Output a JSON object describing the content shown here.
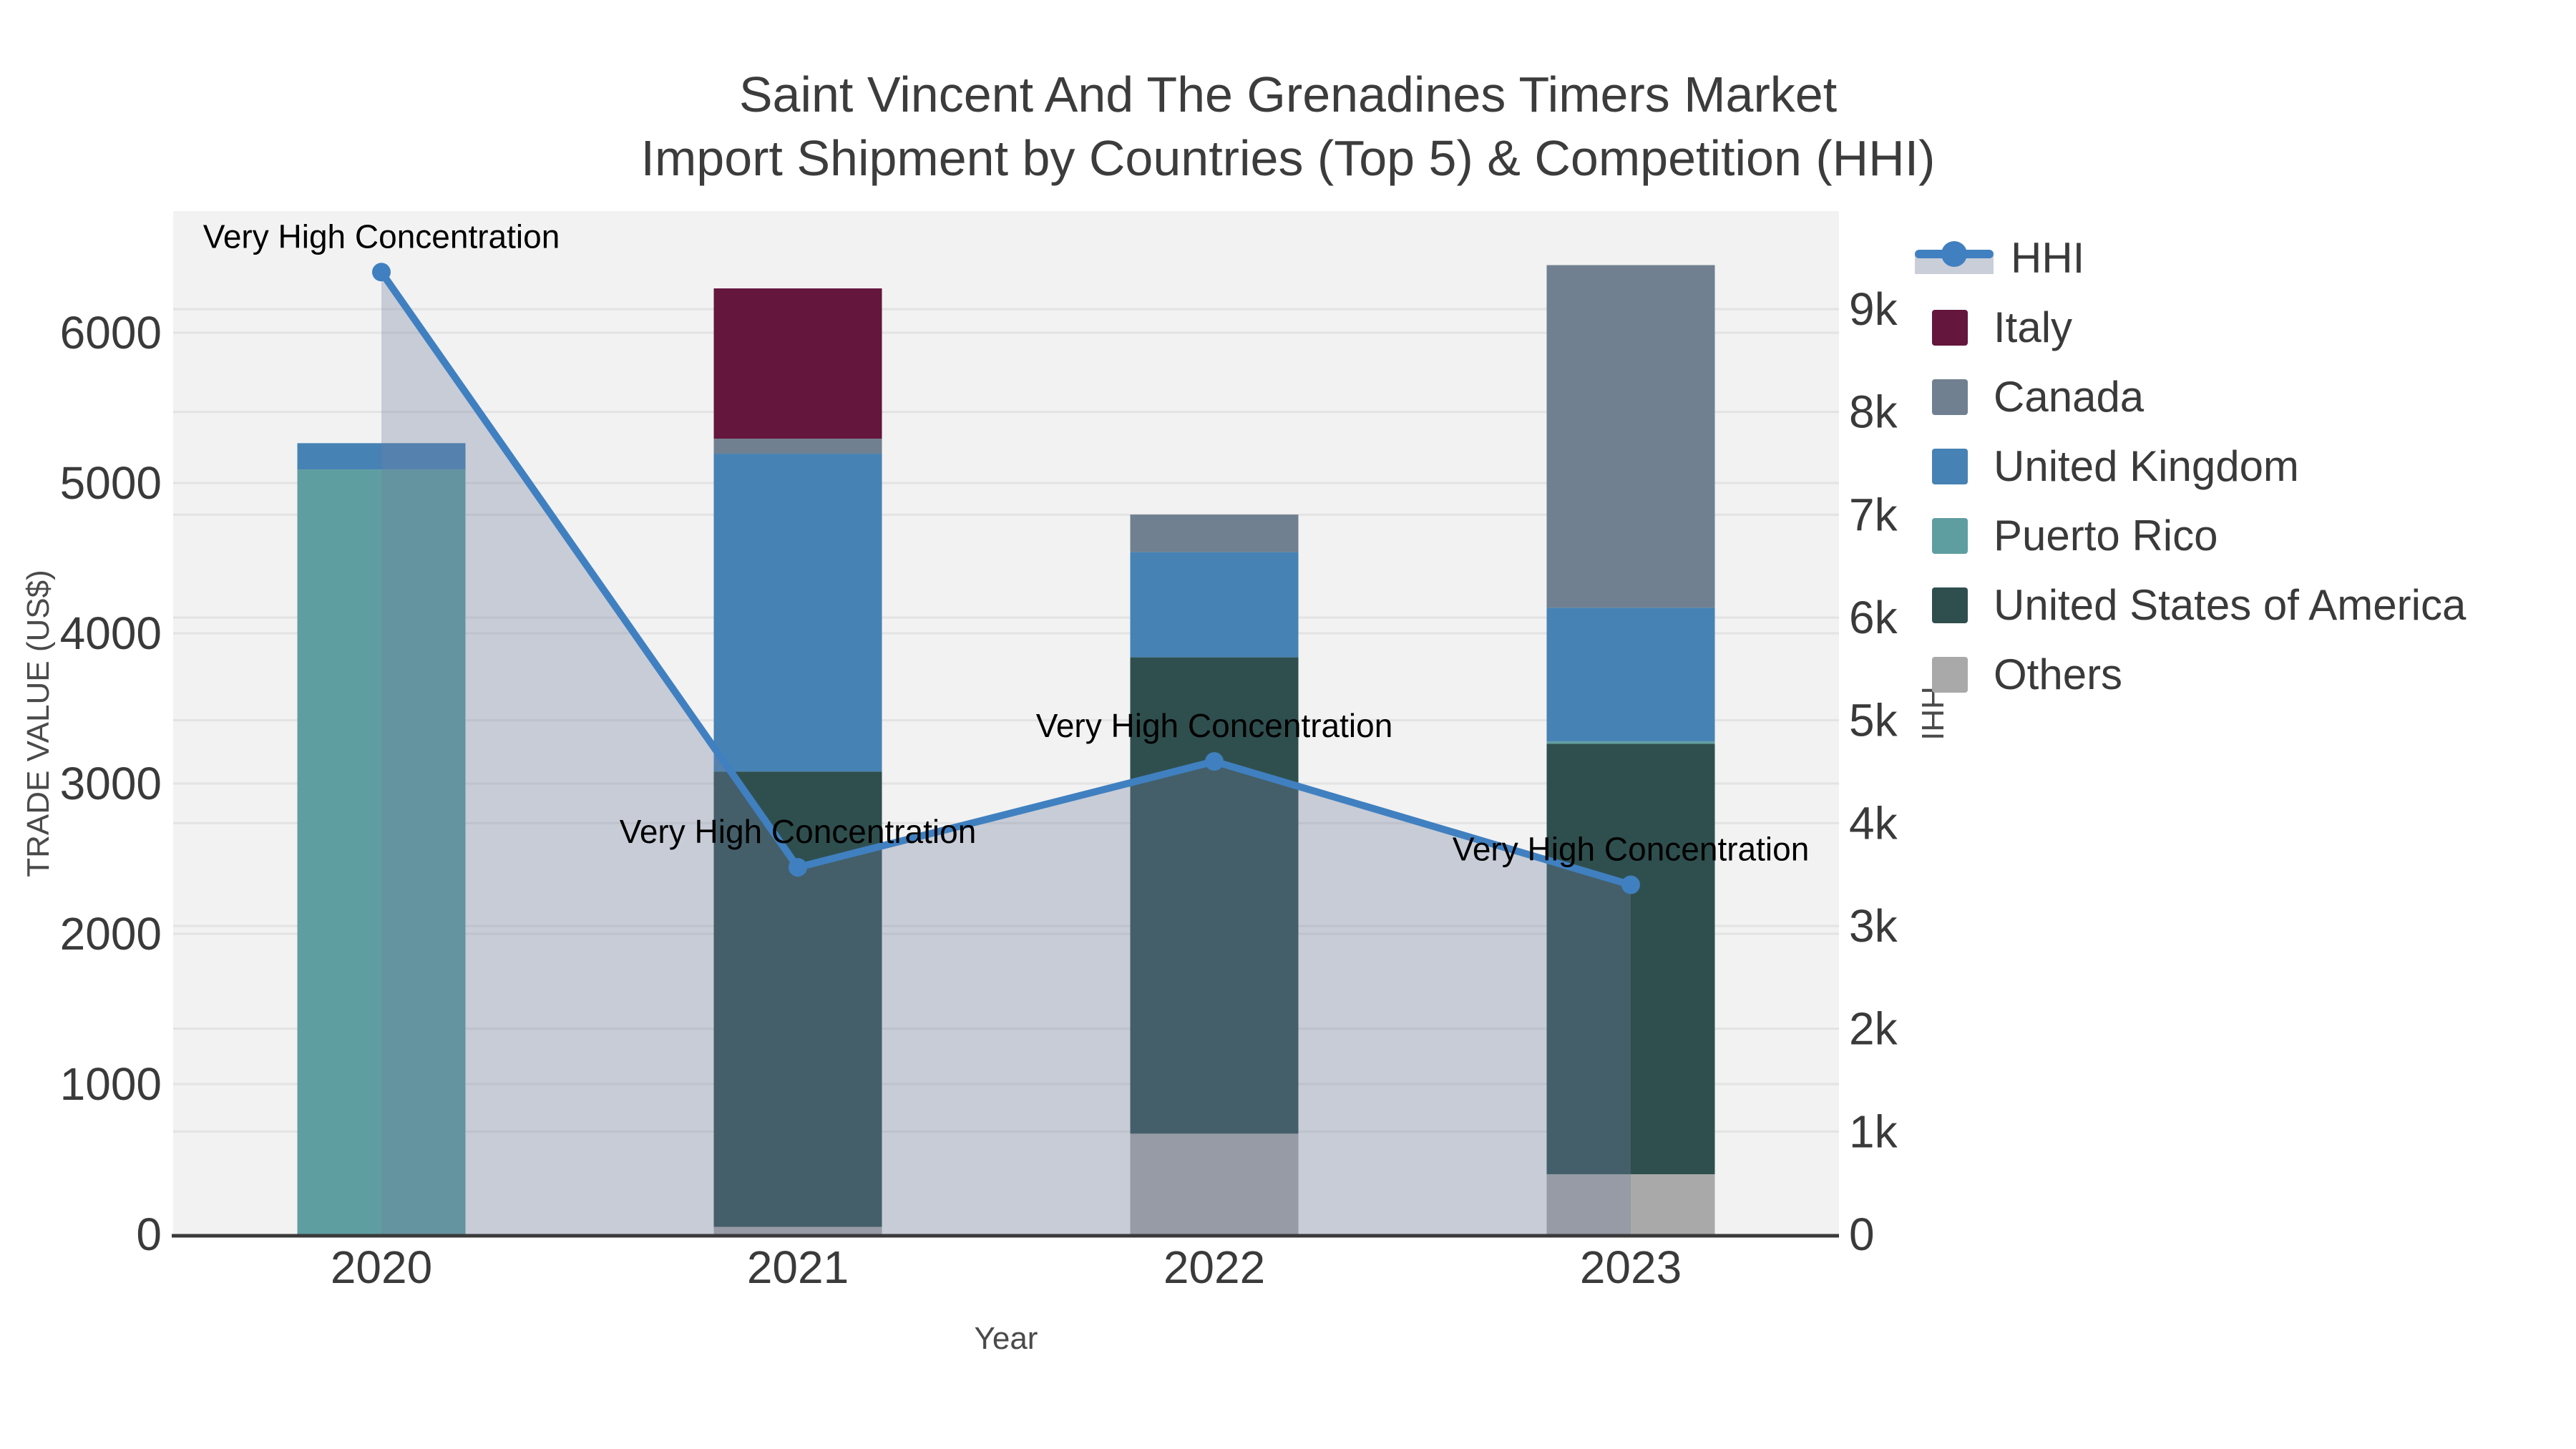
{
  "title": {
    "line1": "Saint Vincent And The Grenadines Timers Market",
    "line2": "Import Shipment by Countries (Top 5) & Competition (HHI)"
  },
  "axes": {
    "x_title": "Year",
    "y_left_title": "TRADE VALUE (US$)",
    "y_right_title": "HHI",
    "x_ticks": [
      "2020",
      "2021",
      "2022",
      "2023"
    ],
    "y_left_ticks": [
      {
        "label": "0",
        "value": 0
      },
      {
        "label": "1000",
        "value": 1000
      },
      {
        "label": "2000",
        "value": 2000
      },
      {
        "label": "3000",
        "value": 3000
      },
      {
        "label": "4000",
        "value": 4000
      },
      {
        "label": "5000",
        "value": 5000
      },
      {
        "label": "6000",
        "value": 6000
      }
    ],
    "y_right_ticks": [
      {
        "label": "0",
        "value": 0
      },
      {
        "label": "1k",
        "value": 1000
      },
      {
        "label": "2k",
        "value": 2000
      },
      {
        "label": "3k",
        "value": 3000
      },
      {
        "label": "4k",
        "value": 4000
      },
      {
        "label": "5k",
        "value": 5000
      },
      {
        "label": "6k",
        "value": 6000
      },
      {
        "label": "7k",
        "value": 7000
      },
      {
        "label": "8k",
        "value": 8000
      },
      {
        "label": "9k",
        "value": 9000
      }
    ]
  },
  "legend": {
    "items": [
      {
        "label": "HHI",
        "type": "line",
        "color": "#4080c0",
        "fill": "#c9ced9"
      },
      {
        "label": "Italy",
        "type": "swatch",
        "color": "#64163c"
      },
      {
        "label": "Canada",
        "type": "swatch",
        "color": "#708090"
      },
      {
        "label": "United Kingdom",
        "type": "swatch",
        "color": "#4682b4"
      },
      {
        "label": "Puerto Rico",
        "type": "swatch",
        "color": "#5f9ea0"
      },
      {
        "label": "United States of America",
        "type": "swatch",
        "color": "#2f4f4f"
      },
      {
        "label": "Others",
        "type": "swatch",
        "color": "#a9a9a9"
      }
    ]
  },
  "chart_data": {
    "type": "bar+line",
    "categories": [
      "2020",
      "2021",
      "2022",
      "2023"
    ],
    "stack_order_bottom_to_top": [
      "Others",
      "United States of America",
      "Puerto Rico",
      "United Kingdom",
      "Canada",
      "Italy"
    ],
    "bar_series": [
      {
        "name": "Others",
        "color": "#a9a9a9",
        "values": [
          0,
          50,
          670,
          400
        ]
      },
      {
        "name": "United States of America",
        "color": "#2f4f4f",
        "values": [
          0,
          3030,
          3170,
          2865
        ]
      },
      {
        "name": "Puerto Rico",
        "color": "#5f9ea0",
        "values": [
          5090,
          0,
          0,
          15
        ]
      },
      {
        "name": "United Kingdom",
        "color": "#4682b4",
        "values": [
          175,
          2115,
          700,
          890
        ]
      },
      {
        "name": "Canada",
        "color": "#708090",
        "values": [
          0,
          100,
          250,
          2280
        ]
      },
      {
        "name": "Italy",
        "color": "#64163c",
        "values": [
          0,
          1000,
          0,
          0
        ]
      }
    ],
    "bar_totals": [
      5265,
      6295,
      4790,
      6450
    ],
    "line_series": {
      "name": "HHI",
      "color": "#4080c0",
      "area_fill": "rgba(113,127,161,0.33)",
      "values": [
        9360,
        3570,
        4600,
        3400
      ]
    },
    "annotations": [
      {
        "category": "2020",
        "text": "Very High Concentration"
      },
      {
        "category": "2021",
        "text": "Very High Concentration"
      },
      {
        "category": "2022",
        "text": "Very High Concentration"
      },
      {
        "category": "2023",
        "text": "Very High Concentration"
      }
    ],
    "xlabel": "Year",
    "ylabel_left": "TRADE VALUE (US$)",
    "ylabel_right": "HHI",
    "ylim_left": [
      0,
      6810
    ],
    "ylim_right": [
      0,
      9950
    ],
    "grid": true,
    "legend_position": "right",
    "plot_bg": "#f2f2f2",
    "grid_color": "#e3e3e3",
    "axis_line_color": "#3a3a3a"
  }
}
